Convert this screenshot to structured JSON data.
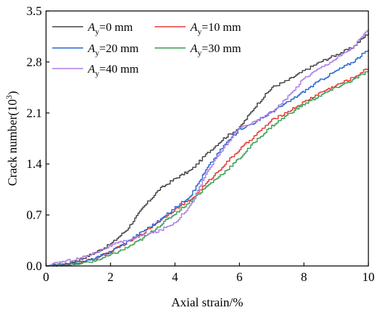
{
  "chart_data": {
    "type": "line",
    "xlabel": "Axial strain/%",
    "ylabel_prefix": "Crack number(10",
    "ylabel_exp": "3",
    "ylabel_suffix": ")",
    "xlim": [
      0,
      10
    ],
    "ylim": [
      0,
      3.5
    ],
    "xticks": [
      0,
      2,
      4,
      6,
      8,
      10
    ],
    "yticks": [
      0.0,
      0.7,
      1.4,
      2.1,
      2.8,
      3.5
    ],
    "xtick_labels": [
      "0",
      "2",
      "4",
      "6",
      "8",
      "10"
    ],
    "ytick_labels": [
      "0.0",
      "0.7",
      "1.4",
      "2.1",
      "2.8",
      "3.5"
    ],
    "grid": false,
    "legend_position": "top-left",
    "series": [
      {
        "name": "0 mm",
        "legend_var": "A",
        "legend_sub": "y",
        "legend_eq": "=0 mm",
        "color": "#3a3a3a",
        "x": [
          0,
          0.5,
          1.0,
          1.5,
          2.0,
          2.5,
          3.0,
          3.5,
          4.0,
          4.5,
          5.0,
          5.5,
          6.0,
          6.5,
          7.0,
          7.5,
          8.0,
          8.5,
          9.0,
          9.5,
          10.0
        ],
        "y": [
          0,
          0.02,
          0.08,
          0.18,
          0.3,
          0.5,
          0.8,
          1.05,
          1.2,
          1.32,
          1.55,
          1.75,
          1.9,
          2.2,
          2.45,
          2.55,
          2.68,
          2.8,
          2.9,
          3.0,
          3.2
        ]
      },
      {
        "name": "10 mm",
        "legend_var": "A",
        "legend_sub": "y",
        "legend_eq": "=10 mm",
        "color": "#e8302a",
        "x": [
          0,
          0.5,
          1.0,
          1.5,
          2.0,
          2.5,
          3.0,
          3.5,
          4.0,
          4.5,
          5.0,
          5.5,
          6.0,
          6.5,
          7.0,
          7.5,
          8.0,
          8.5,
          9.0,
          9.5,
          10.0
        ],
        "y": [
          0,
          0.01,
          0.04,
          0.1,
          0.2,
          0.32,
          0.45,
          0.62,
          0.78,
          0.92,
          1.15,
          1.38,
          1.6,
          1.8,
          2.0,
          2.12,
          2.25,
          2.38,
          2.48,
          2.58,
          2.72
        ]
      },
      {
        "name": "20 mm",
        "legend_var": "A",
        "legend_sub": "y",
        "legend_eq": "=20 mm",
        "color": "#1f5fcf",
        "x": [
          0,
          0.5,
          1.0,
          1.5,
          2.0,
          2.5,
          3.0,
          3.5,
          4.0,
          4.5,
          5.0,
          5.5,
          6.0,
          6.5,
          7.0,
          7.5,
          8.0,
          8.5,
          9.0,
          9.5,
          10.0
        ],
        "y": [
          0,
          0.01,
          0.04,
          0.1,
          0.2,
          0.33,
          0.48,
          0.62,
          0.8,
          0.98,
          1.35,
          1.65,
          1.88,
          1.98,
          2.12,
          2.25,
          2.4,
          2.55,
          2.68,
          2.8,
          2.97
        ]
      },
      {
        "name": "30 mm",
        "legend_var": "A",
        "legend_sub": "y",
        "legend_eq": "=30 mm",
        "color": "#2e9a4a",
        "x": [
          0,
          0.5,
          1.0,
          1.5,
          2.0,
          2.5,
          3.0,
          3.5,
          4.0,
          4.5,
          5.0,
          5.5,
          6.0,
          6.5,
          7.0,
          7.5,
          8.0,
          8.5,
          9.0,
          9.5,
          10.0
        ],
        "y": [
          0,
          0.01,
          0.03,
          0.07,
          0.15,
          0.25,
          0.38,
          0.55,
          0.72,
          0.9,
          1.1,
          1.28,
          1.48,
          1.72,
          1.92,
          2.08,
          2.22,
          2.34,
          2.45,
          2.55,
          2.68
        ]
      },
      {
        "name": "40 mm",
        "legend_var": "A",
        "legend_sub": "y",
        "legend_eq": "=40 mm",
        "color": "#a878e0",
        "x": [
          0,
          0.5,
          1.0,
          1.5,
          2.0,
          2.5,
          3.0,
          3.5,
          4.0,
          4.5,
          5.0,
          5.5,
          6.0,
          6.5,
          7.0,
          7.5,
          8.0,
          8.5,
          9.0,
          9.5,
          10.0
        ],
        "y": [
          0,
          0.06,
          0.1,
          0.18,
          0.28,
          0.35,
          0.42,
          0.48,
          0.6,
          0.85,
          1.3,
          1.62,
          1.9,
          1.98,
          2.12,
          2.32,
          2.58,
          2.72,
          2.85,
          3.0,
          3.25
        ]
      }
    ]
  }
}
